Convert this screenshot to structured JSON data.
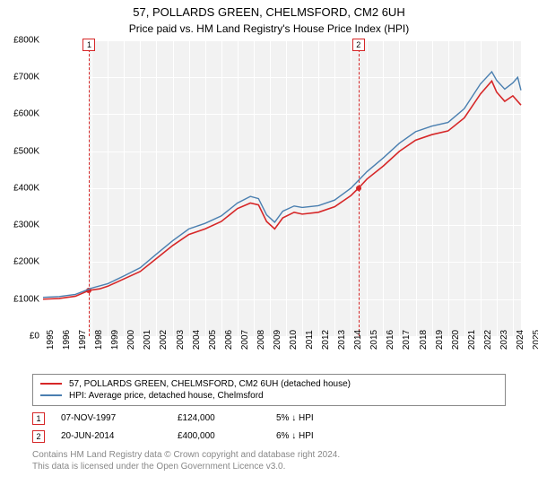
{
  "title": "57, POLLARDS GREEN, CHELMSFORD, CM2 6UH",
  "subtitle": "Price paid vs. HM Land Registry's House Price Index (HPI)",
  "chart": {
    "type": "line",
    "background_color": "#f2f2f2",
    "grid_color": "#ffffff",
    "x_min": 1995,
    "x_max": 2025,
    "x_ticks": [
      1995,
      1996,
      1997,
      1998,
      1999,
      2000,
      2001,
      2002,
      2003,
      2004,
      2005,
      2006,
      2007,
      2008,
      2009,
      2010,
      2011,
      2012,
      2013,
      2014,
      2015,
      2016,
      2017,
      2018,
      2019,
      2020,
      2021,
      2022,
      2023,
      2024,
      2025
    ],
    "y_min": 0,
    "y_max": 800000,
    "y_ticks": [
      0,
      100000,
      200000,
      300000,
      400000,
      500000,
      600000,
      700000,
      800000
    ],
    "y_tick_labels": [
      "£0",
      "£100K",
      "£200K",
      "£300K",
      "£400K",
      "£500K",
      "£600K",
      "£700K",
      "£800K"
    ],
    "shaded_from": 1997.85,
    "shaded_to": 2024.5,
    "series": [
      {
        "name": "price_paid",
        "label": "57, POLLARDS GREEN, CHELMSFORD, CM2 6UH (detached house)",
        "color": "#d62728",
        "width": 1.6,
        "points": [
          [
            1995,
            100000
          ],
          [
            1996,
            102000
          ],
          [
            1997,
            108000
          ],
          [
            1997.85,
            124000
          ],
          [
            1998.5,
            128000
          ],
          [
            1999,
            135000
          ],
          [
            2000,
            155000
          ],
          [
            2001,
            175000
          ],
          [
            2002,
            210000
          ],
          [
            2003,
            245000
          ],
          [
            2004,
            275000
          ],
          [
            2005,
            290000
          ],
          [
            2006,
            310000
          ],
          [
            2007,
            345000
          ],
          [
            2007.8,
            360000
          ],
          [
            2008.3,
            355000
          ],
          [
            2008.8,
            310000
          ],
          [
            2009.3,
            290000
          ],
          [
            2009.8,
            320000
          ],
          [
            2010.5,
            335000
          ],
          [
            2011,
            330000
          ],
          [
            2012,
            335000
          ],
          [
            2013,
            350000
          ],
          [
            2014,
            380000
          ],
          [
            2014.47,
            400000
          ],
          [
            2015,
            425000
          ],
          [
            2016,
            460000
          ],
          [
            2017,
            500000
          ],
          [
            2018,
            530000
          ],
          [
            2019,
            545000
          ],
          [
            2020,
            555000
          ],
          [
            2021,
            590000
          ],
          [
            2022,
            655000
          ],
          [
            2022.7,
            690000
          ],
          [
            2023,
            660000
          ],
          [
            2023.5,
            635000
          ],
          [
            2024,
            650000
          ],
          [
            2024.5,
            625000
          ]
        ]
      },
      {
        "name": "hpi",
        "label": "HPI: Average price, detached house, Chelmsford",
        "color": "#4a7fb0",
        "width": 1.4,
        "points": [
          [
            1995,
            105000
          ],
          [
            1996,
            107000
          ],
          [
            1997,
            113000
          ],
          [
            1998,
            130000
          ],
          [
            1999,
            142000
          ],
          [
            2000,
            163000
          ],
          [
            2001,
            185000
          ],
          [
            2002,
            222000
          ],
          [
            2003,
            258000
          ],
          [
            2004,
            290000
          ],
          [
            2005,
            305000
          ],
          [
            2006,
            325000
          ],
          [
            2007,
            360000
          ],
          [
            2007.8,
            378000
          ],
          [
            2008.3,
            372000
          ],
          [
            2008.8,
            328000
          ],
          [
            2009.3,
            308000
          ],
          [
            2009.8,
            338000
          ],
          [
            2010.5,
            352000
          ],
          [
            2011,
            348000
          ],
          [
            2012,
            353000
          ],
          [
            2013,
            368000
          ],
          [
            2014,
            400000
          ],
          [
            2015,
            445000
          ],
          [
            2016,
            482000
          ],
          [
            2017,
            522000
          ],
          [
            2018,
            553000
          ],
          [
            2019,
            568000
          ],
          [
            2020,
            578000
          ],
          [
            2021,
            615000
          ],
          [
            2022,
            682000
          ],
          [
            2022.7,
            715000
          ],
          [
            2023,
            692000
          ],
          [
            2023.5,
            668000
          ],
          [
            2024,
            685000
          ],
          [
            2024.3,
            700000
          ],
          [
            2024.5,
            665000
          ]
        ]
      }
    ],
    "markers": [
      {
        "id": "1",
        "x": 1997.85,
        "y": 124000
      },
      {
        "id": "2",
        "x": 2014.47,
        "y": 400000
      }
    ]
  },
  "legend": [
    {
      "color": "#d62728",
      "label": "57, POLLARDS GREEN, CHELMSFORD, CM2 6UH (detached house)"
    },
    {
      "color": "#4a7fb0",
      "label": "HPI: Average price, detached house, Chelmsford"
    }
  ],
  "transactions": [
    {
      "id": "1",
      "date": "07-NOV-1997",
      "price": "£124,000",
      "hpi": "5% ↓ HPI"
    },
    {
      "id": "2",
      "date": "20-JUN-2014",
      "price": "£400,000",
      "hpi": "6% ↓ HPI"
    }
  ],
  "footer_line1": "Contains HM Land Registry data © Crown copyright and database right 2024.",
  "footer_line2": "This data is licensed under the Open Government Licence v3.0."
}
